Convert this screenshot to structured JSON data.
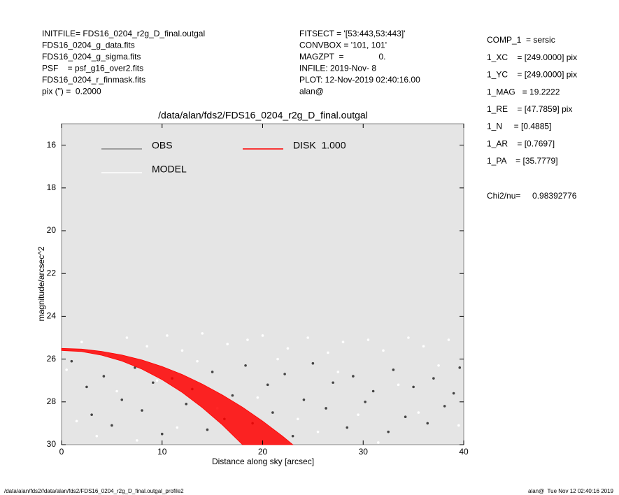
{
  "header": {
    "left": [
      "INITFILE= FDS16_0204_r2g_D_final.outgal",
      "FDS16_0204_g_data.fits",
      "FDS16_0204_g_sigma.fits",
      "PSF    = psf_g16_over2.fits",
      "FDS16_0204_r_finmask.fits",
      "pix (\") =  0.2000"
    ],
    "middle": [
      "FITSECT = '[53:443,53:443]'",
      "CONVBOX = '101, 101'",
      "MAGZPT  =               0.",
      "INFILE: 2019-Nov- 8",
      "PLOT: 12-Nov-2019 02:40:16.00",
      "alan@"
    ],
    "right": [
      "COMP_1  = sersic",
      "1_XC    = [249.0000] pix",
      "1_YC    = [249.0000] pix",
      "1_MAG   = 19.2222",
      "1_RE    = [47.7859] pix",
      "1_N     = [0.4885]",
      "1_AR    = [0.7697]",
      "1_PA    = [35.7779]"
    ],
    "chi2": "Chi2/nu=     0.98392776"
  },
  "footer": {
    "left": "/data/alan/fds2//data/alan/fds2/FDS16_0204_r2g_D_final.outgal_profile2",
    "right": "alan@  Tue Nov 12 02:40:16 2019"
  },
  "chart_data": {
    "type": "scatter",
    "title": "/data/alan/fds2/FDS16_0204_r2g_D_final.outgal",
    "xlabel": "Distance along sky [arcsec]",
    "ylabel": "magnitude/arcsec^2",
    "xlim": [
      0,
      40
    ],
    "xticks": [
      0,
      10,
      20,
      30,
      40
    ],
    "ylim": [
      30,
      15
    ],
    "yticks": [
      16,
      18,
      20,
      22,
      24,
      26,
      28,
      30
    ],
    "background": "#e5e5e5",
    "series": [
      {
        "name": "OBS",
        "color": "#444444",
        "legend_color": "#888888",
        "x": [
          1,
          2.5,
          3,
          4.2,
          5,
          6,
          7.3,
          8,
          9.1,
          10,
          11,
          12.4,
          13,
          14.5,
          15,
          16.2,
          17,
          18.3,
          19,
          20.5,
          21,
          22.2,
          23,
          24.1,
          25,
          26.3,
          27,
          28.4,
          29,
          30.2,
          31,
          32.5,
          33,
          34.2,
          35,
          36.4,
          37,
          38.1,
          39,
          39.6
        ],
        "values": [
          26.1,
          27.3,
          28.6,
          26.8,
          29.1,
          27.9,
          26.4,
          28.4,
          27.1,
          29.5,
          26.9,
          28.1,
          27.4,
          29.3,
          26.6,
          28.8,
          27.7,
          26.3,
          29.0,
          27.2,
          28.5,
          26.7,
          29.6,
          27.9,
          26.2,
          28.3,
          27.1,
          29.2,
          26.8,
          28.0,
          27.5,
          29.4,
          26.5,
          28.7,
          27.3,
          29.0,
          26.9,
          28.2,
          27.6,
          26.4
        ]
      },
      {
        "name": "MODEL",
        "color": "#ffffff",
        "legend_color": "#ffffff",
        "x": [
          0.5,
          1.5,
          2,
          3.5,
          4.5,
          5.5,
          6.5,
          7.5,
          8.5,
          9.5,
          10.5,
          11.5,
          12,
          13.5,
          14,
          15.5,
          16.5,
          17.5,
          18.5,
          19.5,
          20,
          21.5,
          22.5,
          23.5,
          24.5,
          25.5,
          26.5,
          27.5,
          28,
          29.5,
          30.5,
          31.5,
          32,
          33.5,
          34.5,
          35.5,
          36,
          37.5,
          38.5,
          39.5
        ],
        "values": [
          26.5,
          28.9,
          25.2,
          29.6,
          25.8,
          27.5,
          25.0,
          29.8,
          25.4,
          27.0,
          24.9,
          29.2,
          25.6,
          26.1,
          24.8,
          28.3,
          25.3,
          29.7,
          25.1,
          27.8,
          24.9,
          26.0,
          25.5,
          28.8,
          25.0,
          29.4,
          25.7,
          26.6,
          25.2,
          28.6,
          25.1,
          29.9,
          25.6,
          27.2,
          25.0,
          28.5,
          25.4,
          26.3,
          25.1,
          29.1
        ]
      },
      {
        "name": "DISK  1.000",
        "color": "#ff0000",
        "legend_color": "#ff0000",
        "type": "area",
        "x": [
          0,
          2,
          4,
          6,
          8,
          10,
          12,
          14,
          16,
          18,
          20,
          22,
          23,
          18,
          16,
          14,
          12,
          10,
          8,
          6,
          4,
          2,
          0
        ],
        "values": [
          25.5,
          25.53,
          25.64,
          25.81,
          26.04,
          26.35,
          26.72,
          27.17,
          27.68,
          28.25,
          28.9,
          29.61,
          30,
          30,
          29.08,
          28.27,
          27.56,
          26.96,
          26.47,
          26.09,
          25.82,
          25.65,
          25.6
        ]
      }
    ]
  }
}
